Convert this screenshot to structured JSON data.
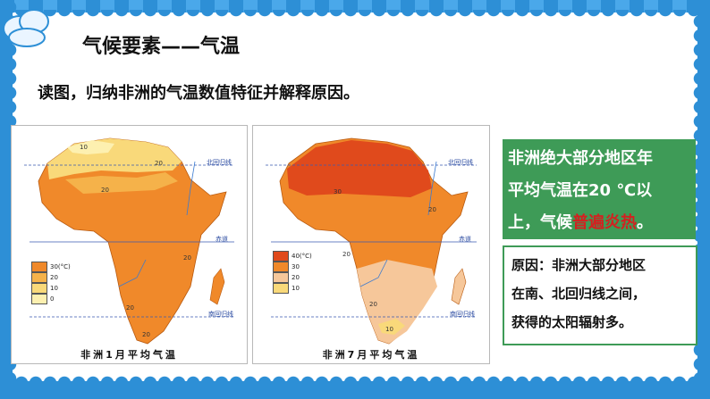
{
  "title": "气候要素——气温",
  "instruction": "读图，归纳非洲的气温数值特征并解释原因。",
  "map_jan": {
    "caption": "非洲1月平均气温",
    "tropic_north": "北回归线",
    "equator": "赤道",
    "tropic_south": "南回归线",
    "legend": [
      {
        "label": "30(°C)",
        "color": "#f0892a"
      },
      {
        "label": "20",
        "color": "#f5b24a"
      },
      {
        "label": "10",
        "color": "#f9d97a"
      },
      {
        "label": "0",
        "color": "#fdf0b0"
      }
    ],
    "isotherms": [
      "10",
      "20",
      "20",
      "20",
      "20",
      "20"
    ]
  },
  "map_jul": {
    "caption": "非洲7月平均气温",
    "tropic_north": "北回归线",
    "equator": "赤道",
    "tropic_south": "南回归线",
    "legend": [
      {
        "label": "40(°C)",
        "color": "#e04a1c"
      },
      {
        "label": "30",
        "color": "#f0892a"
      },
      {
        "label": "20",
        "color": "#f6c79a"
      },
      {
        "label": "10",
        "color": "#f9d97a"
      }
    ],
    "isotherms": [
      "30",
      "20",
      "20",
      "20",
      "10"
    ]
  },
  "conclusion": {
    "line1": "非洲绝大部分地区年",
    "line2": "平均气温在20 ℃以",
    "line3_prefix": "上，气候",
    "line3_hot": "普遍炎热",
    "line3_suffix": "。"
  },
  "reason": {
    "line1": "原因：非洲大部分地区",
    "line2": "在南、北回归线之间，",
    "line3": "获得的太阳辐射多。"
  },
  "colors": {
    "frame_blue": "#2d8fd6",
    "green": "#3e9b57",
    "highlight_red": "#d42020"
  }
}
